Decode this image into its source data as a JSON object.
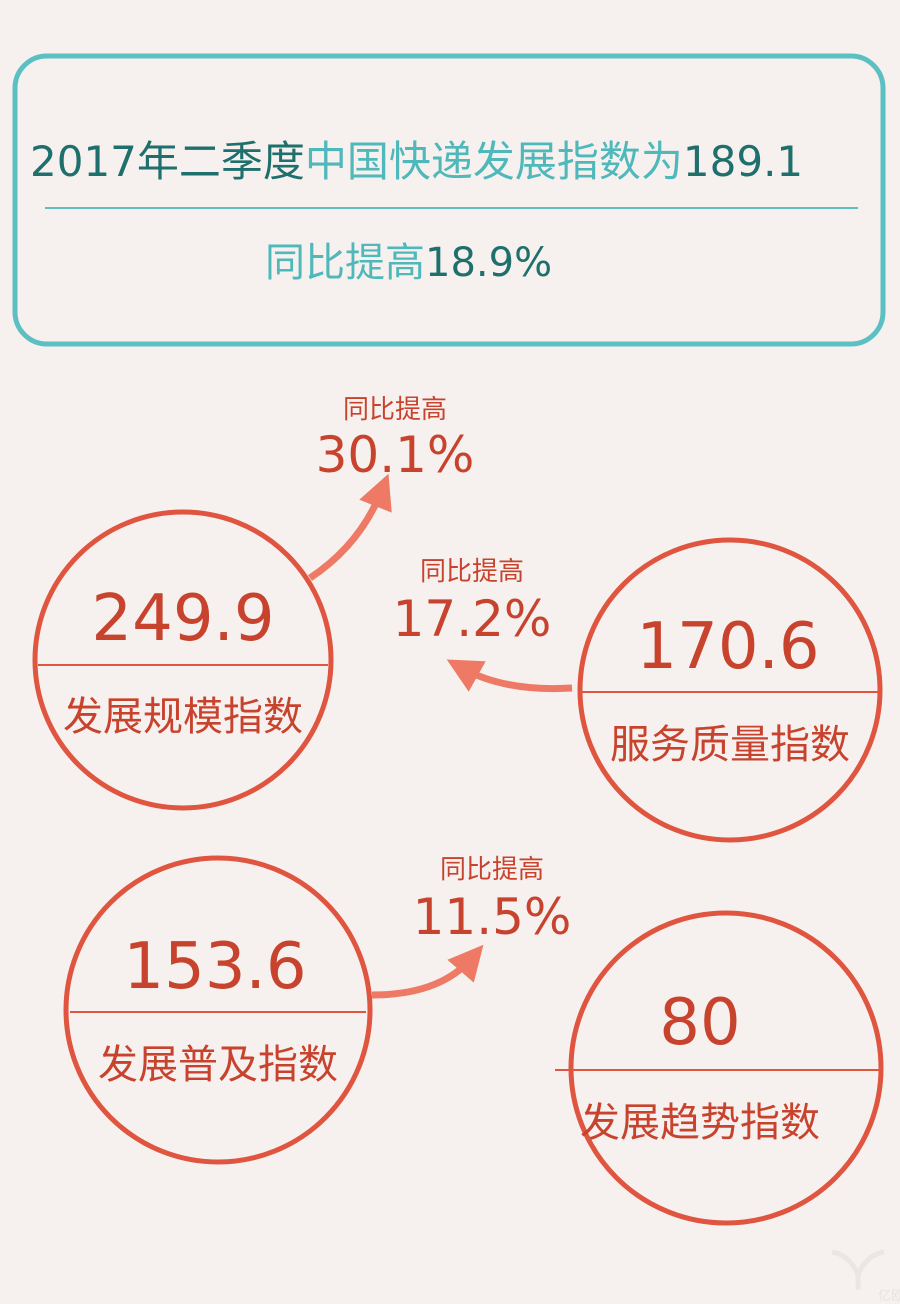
{
  "header": {
    "title_part1": "2017年二季度",
    "title_part2": "中国快递发展指数为",
    "title_value": "189.1",
    "subtitle_label": "同比提高",
    "subtitle_value": "18.9%"
  },
  "indices": [
    {
      "value": "249.9",
      "label": "发展规模指数",
      "growth_label": "同比提高",
      "growth": "30.1%"
    },
    {
      "value": "170.6",
      "label": "服务质量指数",
      "growth_label": "同比提高",
      "growth": "17.2%"
    },
    {
      "value": "153.6",
      "label": "发展普及指数",
      "growth_label": "同比提高",
      "growth": "11.5%"
    },
    {
      "value": "80",
      "label": "发展趋势指数"
    }
  ],
  "watermark": "亿欧",
  "colors": {
    "teal_dark": "#1f6f6c",
    "teal_light": "#4fb8bb",
    "red": "#e0553f",
    "red_text": "#c8432e",
    "background": "#f6f1ee"
  }
}
